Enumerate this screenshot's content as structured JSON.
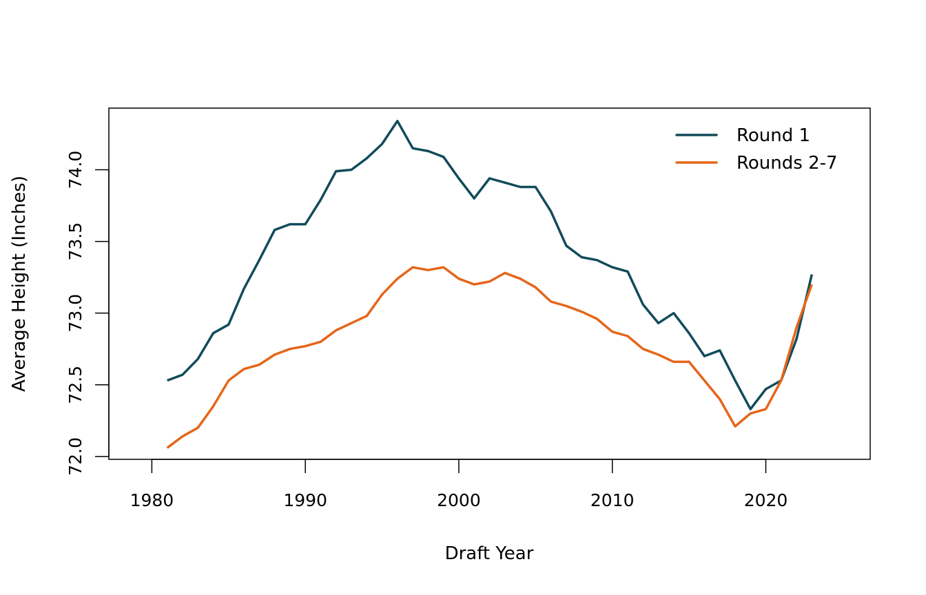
{
  "chart_data": {
    "type": "line",
    "title": "",
    "xlabel": "Draft Year",
    "ylabel": "Average Height (Inches)",
    "xlim": [
      1977.2,
      2026.8
    ],
    "ylim": [
      71.98,
      74.43
    ],
    "xticks": [
      1980,
      1990,
      2000,
      2010,
      2020
    ],
    "yticks": [
      "72.0",
      "72.5",
      "73.0",
      "73.5",
      "74.0"
    ],
    "grid": false,
    "legend_position": "top-right",
    "x": [
      1981,
      1982,
      1983,
      1984,
      1985,
      1986,
      1987,
      1988,
      1989,
      1990,
      1991,
      1992,
      1993,
      1994,
      1995,
      1996,
      1997,
      1998,
      1999,
      2000,
      2001,
      2002,
      2003,
      2004,
      2005,
      2006,
      2007,
      2008,
      2009,
      2010,
      2011,
      2012,
      2013,
      2014,
      2015,
      2016,
      2017,
      2018,
      2019,
      2020,
      2021,
      2022,
      2023
    ],
    "series": [
      {
        "name": "Round 1",
        "color": "#124b5a",
        "values": [
          72.53,
          72.57,
          72.68,
          72.86,
          72.92,
          73.17,
          73.37,
          73.58,
          73.62,
          73.62,
          73.79,
          73.99,
          74.0,
          74.08,
          74.18,
          74.34,
          74.15,
          74.13,
          74.09,
          73.94,
          73.8,
          73.94,
          73.91,
          73.88,
          73.88,
          73.71,
          73.47,
          73.39,
          73.37,
          73.32,
          73.29,
          73.06,
          72.93,
          73.0,
          72.86,
          72.7,
          72.74,
          72.53,
          72.33,
          72.47,
          72.53,
          72.82,
          73.27
        ]
      },
      {
        "name": "Rounds 2-7",
        "color": "#e5661a",
        "values": [
          72.06,
          72.14,
          72.2,
          72.35,
          72.53,
          72.61,
          72.64,
          72.71,
          72.75,
          72.77,
          72.8,
          72.88,
          72.93,
          72.98,
          73.13,
          73.24,
          73.32,
          73.3,
          73.32,
          73.24,
          73.2,
          73.22,
          73.28,
          73.24,
          73.18,
          73.08,
          73.05,
          73.01,
          72.96,
          72.87,
          72.84,
          72.75,
          72.71,
          72.66,
          72.66,
          72.53,
          72.4,
          72.21,
          72.3,
          72.33,
          72.53,
          72.9,
          73.2
        ]
      }
    ]
  }
}
